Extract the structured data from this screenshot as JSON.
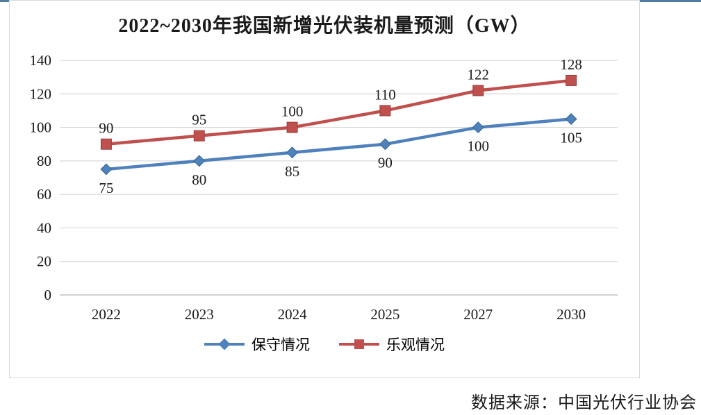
{
  "chart": {
    "title": "2022~2030年我国新增光伏装机量预测（GW）"
  },
  "chart_data": {
    "type": "line",
    "title": "2022~2030年我国新增光伏装机量预测（GW）",
    "categories": [
      "2022",
      "2023",
      "2024",
      "2025",
      "2027",
      "2030"
    ],
    "series": [
      {
        "name": "保守情况",
        "values": [
          75,
          80,
          85,
          90,
          100,
          105
        ],
        "color": "#4f81bd",
        "marker_stroke": "#3a6596",
        "marker": "diamond",
        "label_position": "below"
      },
      {
        "name": "乐观情况",
        "values": [
          90,
          95,
          100,
          110,
          122,
          128
        ],
        "color": "#c0504d",
        "marker_stroke": "#99403e",
        "marker": "square",
        "label_position": "above"
      }
    ],
    "ylim": [
      0,
      140
    ],
    "yticks": [
      0,
      20,
      40,
      60,
      80,
      100,
      120,
      140
    ],
    "grid": true,
    "legend_position": "bottom",
    "gridline_color": "#d9d9d9",
    "axis_line_color": "#bfbfbf",
    "label_color": "#1a1a1a"
  },
  "decor": {
    "top_rule_color": "#4e7ca3"
  },
  "footer": {
    "source": "数据来源：中国光伏行业协会"
  }
}
